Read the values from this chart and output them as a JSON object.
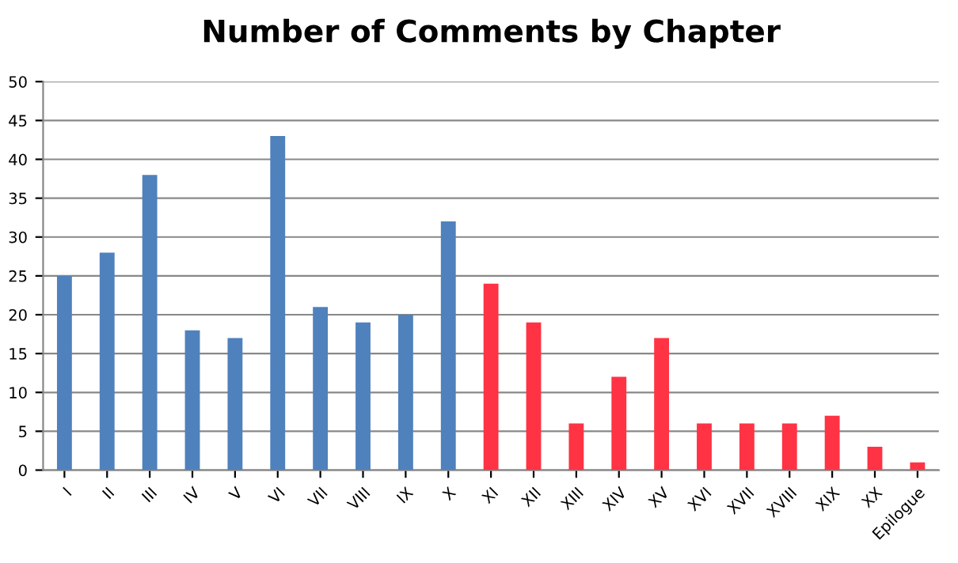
{
  "chart_data": {
    "type": "bar",
    "title": "Number of Comments by Chapter",
    "categories": [
      "I",
      "II",
      "III",
      "IV",
      "V",
      "VI",
      "VII",
      "VIII",
      "IX",
      "X",
      "XI",
      "XII",
      "XIII",
      "XIV",
      "XV",
      "XVI",
      "XVII",
      "XVIII",
      "XIX",
      "XX",
      "Epilogue"
    ],
    "values": [
      25,
      28,
      38,
      18,
      17,
      43,
      21,
      19,
      20,
      32,
      24,
      19,
      6,
      12,
      17,
      6,
      6,
      6,
      7,
      3,
      1
    ],
    "colors": [
      "#4f81bd",
      "#4f81bd",
      "#4f81bd",
      "#4f81bd",
      "#4f81bd",
      "#4f81bd",
      "#4f81bd",
      "#4f81bd",
      "#4f81bd",
      "#4f81bd",
      "#ff3344",
      "#ff3344",
      "#ff3344",
      "#ff3344",
      "#ff3344",
      "#ff3344",
      "#ff3344",
      "#ff3344",
      "#ff3344",
      "#ff3344",
      "#ff3344"
    ],
    "ylim": [
      0,
      50
    ],
    "yticks": [
      0,
      5,
      10,
      15,
      20,
      25,
      30,
      35,
      40,
      45,
      50
    ],
    "grid": "y",
    "legend": false
  }
}
